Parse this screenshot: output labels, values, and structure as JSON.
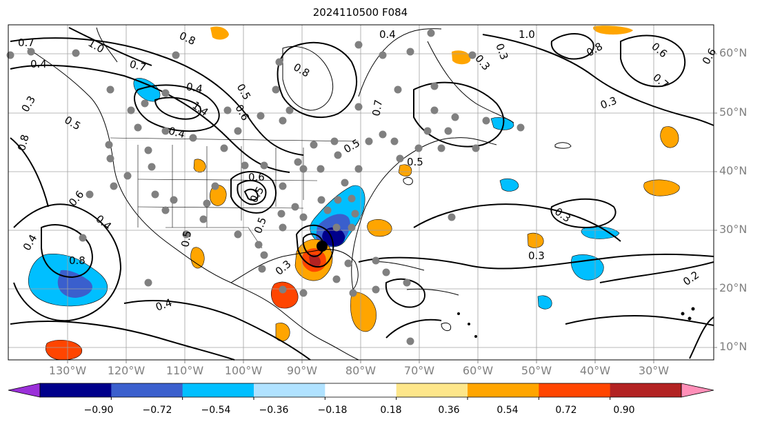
{
  "title": "2024110500 F084",
  "map": {
    "projection": "cylindrical",
    "lon_range": [
      "140°W",
      "20°W"
    ],
    "lat_range": [
      "8°N",
      "65°N"
    ],
    "gridlines": true,
    "region": "North America / North Atlantic",
    "field": "filled anomaly with black contour lines and grey station dots"
  },
  "lat_labels": [
    "60°N",
    "50°N",
    "40°N",
    "30°N",
    "20°N",
    "10°N"
  ],
  "lon_labels": [
    "130°W",
    "120°W",
    "110°W",
    "100°W",
    "90°W",
    "80°W",
    "70°W",
    "60°W",
    "50°W",
    "40°W",
    "30°W"
  ],
  "contour_labels": [
    "0.7",
    "0.4",
    "1.0",
    "0.8",
    "0.3",
    "0.5",
    "0.7",
    "1.4",
    "0.4",
    "0.6",
    "0.5",
    "0.4",
    "0.8",
    "0.4",
    "0.6",
    "0.5",
    "0.6",
    "0.5",
    "0.5",
    "0.3",
    "0.5",
    "0.8",
    "0.4",
    "0.4",
    "0.3",
    "0.3",
    "0.3",
    "0.2",
    "0.4",
    "0.8",
    "0.7",
    "0.6",
    "0.3",
    "0.5",
    "0.7",
    "0.3",
    "1.0",
    "0.8",
    "0.6"
  ],
  "colorbar": {
    "ticks": [
      "−0.90",
      "−0.72",
      "−0.54",
      "−0.36",
      "−0.18",
      "0.18",
      "0.36",
      "0.54",
      "0.72",
      "0.90"
    ],
    "colors": [
      "#9b30d9",
      "#00008b",
      "#3a5fcd",
      "#00bfff",
      "#b0e2ff",
      "#ffffff",
      "#fde68a",
      "#ffa500",
      "#ff4500",
      "#b22222",
      "#ff8fb8"
    ],
    "extend": "both"
  },
  "colors": {
    "coastline": "#000000",
    "grid": "#a0a0a0",
    "station": "#808080",
    "tick_label": "#808080"
  }
}
